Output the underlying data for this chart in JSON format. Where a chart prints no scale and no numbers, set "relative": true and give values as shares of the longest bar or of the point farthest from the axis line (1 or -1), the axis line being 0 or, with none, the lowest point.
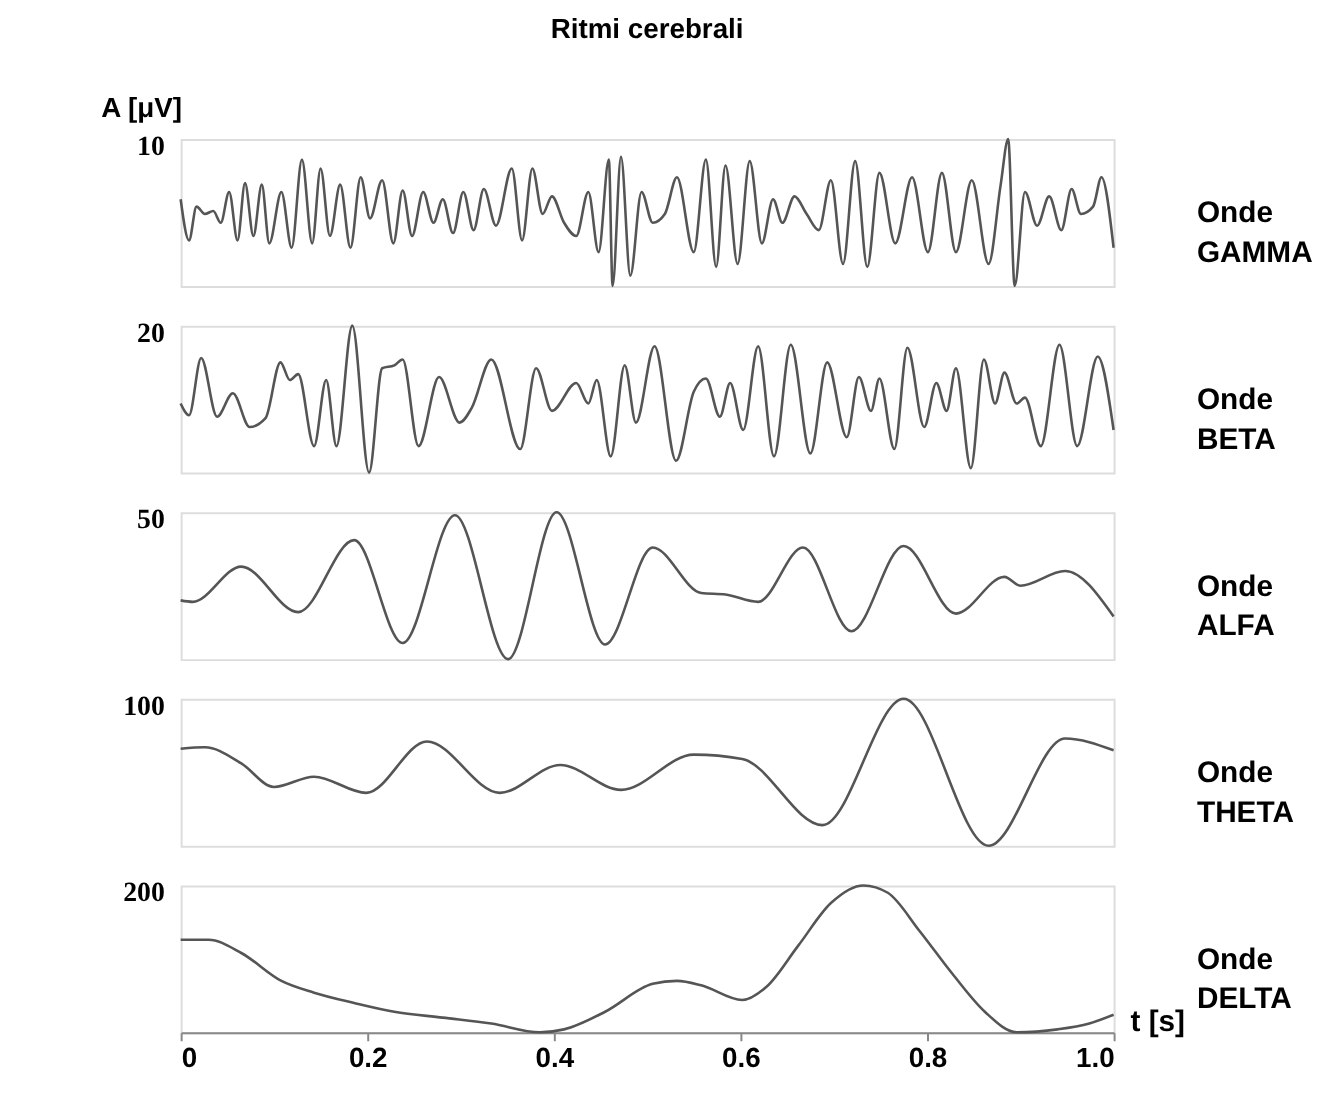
{
  "chart_data": [
    {
      "type": "line",
      "title": "Ritmi cerebrali",
      "ylabel": "A [μV]",
      "relative": true,
      "annotations": [
        "10"
      ],
      "xlim": [
        0,
        1
      ],
      "tick_labels": false,
      "marker": "none",
      "line_style": "solid",
      "series": [
        {
          "name": "Onde GAMMA",
          "color": "#555555",
          "x": [
            0,
            0.009,
            0.017,
            0.026,
            0.035,
            0.043,
            0.052,
            0.061,
            0.069,
            0.078,
            0.087,
            0.095,
            0.108,
            0.119,
            0.13,
            0.141,
            0.15,
            0.16,
            0.171,
            0.182,
            0.193,
            0.203,
            0.216,
            0.228,
            0.238,
            0.248,
            0.26,
            0.271,
            0.281,
            0.292,
            0.303,
            0.314,
            0.325,
            0.338,
            0.355,
            0.366,
            0.377,
            0.388,
            0.398,
            0.411,
            0.424,
            0.437,
            0.448,
            0.459,
            0.463,
            0.472,
            0.482,
            0.494,
            0.506,
            0.519,
            0.532,
            0.55,
            0.563,
            0.574,
            0.584,
            0.597,
            0.61,
            0.623,
            0.635,
            0.645,
            0.658,
            0.671,
            0.684,
            0.697,
            0.71,
            0.723,
            0.736,
            0.749,
            0.766,
            0.784,
            0.801,
            0.816,
            0.831,
            0.848,
            0.866,
            0.879,
            0.887,
            0.894,
            0.905,
            0.918,
            0.931,
            0.944,
            0.955,
            0.965,
            0.978,
            0.987,
            1.0
          ],
          "values": [
            0.59,
            0.31,
            0.54,
            0.49,
            0.51,
            0.43,
            0.64,
            0.31,
            0.7,
            0.34,
            0.69,
            0.29,
            0.64,
            0.26,
            0.86,
            0.29,
            0.8,
            0.34,
            0.69,
            0.26,
            0.74,
            0.46,
            0.72,
            0.29,
            0.65,
            0.34,
            0.64,
            0.43,
            0.59,
            0.36,
            0.64,
            0.38,
            0.66,
            0.41,
            0.8,
            0.31,
            0.8,
            0.49,
            0.61,
            0.43,
            0.34,
            0.64,
            0.23,
            0.86,
            0,
            0.88,
            0.07,
            0.64,
            0.43,
            0.49,
            0.74,
            0.23,
            0.86,
            0.13,
            0.82,
            0.15,
            0.85,
            0.29,
            0.59,
            0.43,
            0.61,
            0.49,
            0.38,
            0.72,
            0.15,
            0.85,
            0.13,
            0.77,
            0.29,
            0.74,
            0.23,
            0.77,
            0.23,
            0.72,
            0.15,
            0.69,
            1,
            0,
            0.64,
            0.41,
            0.61,
            0.38,
            0.66,
            0.49,
            0.54,
            0.74,
            0.26
          ]
        }
      ]
    },
    {
      "type": "line",
      "relative": true,
      "annotations": [
        "20"
      ],
      "xlim": [
        0,
        1
      ],
      "tick_labels": false,
      "marker": "none",
      "line_style": "solid",
      "series": [
        {
          "name": "Onde BETA",
          "color": "#555555",
          "x": [
            0,
            0.009,
            0.022,
            0.039,
            0.056,
            0.074,
            0.091,
            0.107,
            0.117,
            0.126,
            0.143,
            0.156,
            0.167,
            0.184,
            0.202,
            0.216,
            0.229,
            0.238,
            0.255,
            0.277,
            0.299,
            0.312,
            0.333,
            0.364,
            0.381,
            0.398,
            0.424,
            0.437,
            0.446,
            0.461,
            0.476,
            0.488,
            0.508,
            0.531,
            0.55,
            0.563,
            0.578,
            0.589,
            0.603,
            0.619,
            0.636,
            0.654,
            0.675,
            0.693,
            0.714,
            0.727,
            0.74,
            0.749,
            0.765,
            0.779,
            0.797,
            0.81,
            0.821,
            0.831,
            0.847,
            0.861,
            0.873,
            0.883,
            0.896,
            0.905,
            0.922,
            0.942,
            0.961,
            0.983,
            1.0
          ],
          "values": [
            0.47,
            0.39,
            0.78,
            0.38,
            0.54,
            0.31,
            0.37,
            0.75,
            0.63,
            0.67,
            0.18,
            0.63,
            0.18,
            1,
            0,
            0.71,
            0.73,
            0.77,
            0.18,
            0.65,
            0.34,
            0.44,
            0.77,
            0.16,
            0.71,
            0.42,
            0.61,
            0.47,
            0.63,
            0.11,
            0.73,
            0.34,
            0.86,
            0.08,
            0.55,
            0.64,
            0.38,
            0.61,
            0.29,
            0.86,
            0.11,
            0.87,
            0.13,
            0.75,
            0.24,
            0.65,
            0.42,
            0.64,
            0.16,
            0.85,
            0.31,
            0.61,
            0.42,
            0.71,
            0.03,
            0.77,
            0.47,
            0.68,
            0.47,
            0.51,
            0.18,
            0.87,
            0.18,
            0.79,
            0.29
          ]
        }
      ]
    },
    {
      "type": "line",
      "relative": true,
      "annotations": [
        "50"
      ],
      "xlim": [
        0,
        1
      ],
      "tick_labels": false,
      "marker": "none",
      "line_style": "solid",
      "series": [
        {
          "name": "Onde ALFA",
          "color": "#555555",
          "x": [
            0,
            0.013,
            0.065,
            0.126,
            0.186,
            0.238,
            0.294,
            0.351,
            0.403,
            0.455,
            0.506,
            0.558,
            0.584,
            0.619,
            0.667,
            0.719,
            0.775,
            0.831,
            0.883,
            0.9,
            0.948,
            1.0
          ],
          "values": [
            0.4,
            0.39,
            0.63,
            0.32,
            0.81,
            0.11,
            0.98,
            0,
            1,
            0.1,
            0.76,
            0.45,
            0.44,
            0.39,
            0.76,
            0.19,
            0.77,
            0.31,
            0.56,
            0.5,
            0.6,
            0.29
          ]
        }
      ]
    },
    {
      "type": "line",
      "relative": true,
      "annotations": [
        "100"
      ],
      "xlim": [
        0,
        1
      ],
      "tick_labels": false,
      "marker": "none",
      "line_style": "solid",
      "series": [
        {
          "name": "Onde THETA",
          "color": "#555555",
          "x": [
            0,
            0.026,
            0.065,
            0.1,
            0.143,
            0.199,
            0.264,
            0.342,
            0.407,
            0.472,
            0.55,
            0.602,
            0.688,
            0.775,
            0.866,
            0.948,
            1.0
          ],
          "values": [
            0.66,
            0.67,
            0.56,
            0.4,
            0.47,
            0.36,
            0.71,
            0.36,
            0.55,
            0.38,
            0.62,
            0.59,
            0.14,
            1,
            0,
            0.73,
            0.65
          ]
        }
      ]
    },
    {
      "type": "line",
      "relative": true,
      "annotations": [
        "200"
      ],
      "xlabel": "t [s]",
      "xlim": [
        0,
        1
      ],
      "xticks": [
        0,
        0.2,
        0.4,
        0.6,
        0.8,
        {
          "value": 1,
          "label": "1.0"
        }
      ],
      "marker": "none",
      "line_style": "solid",
      "series": [
        {
          "name": "Onde DELTA",
          "color": "#555555",
          "x": [
            0,
            0.03,
            0.065,
            0.108,
            0.143,
            0.186,
            0.229,
            0.281,
            0.333,
            0.385,
            0.411,
            0.455,
            0.506,
            0.532,
            0.558,
            0.602,
            0.628,
            0.662,
            0.697,
            0.732,
            0.758,
            0.792,
            0.827,
            0.862,
            0.896,
            0.94,
            0.974,
            1.0
          ],
          "values": [
            0.63,
            0.63,
            0.54,
            0.35,
            0.27,
            0.2,
            0.14,
            0.1,
            0.06,
            0,
            0.02,
            0.14,
            0.33,
            0.35,
            0.32,
            0.22,
            0.31,
            0.59,
            0.88,
            1,
            0.95,
            0.69,
            0.4,
            0.14,
            0,
            0.02,
            0.06,
            0.12
          ]
        }
      ]
    }
  ]
}
